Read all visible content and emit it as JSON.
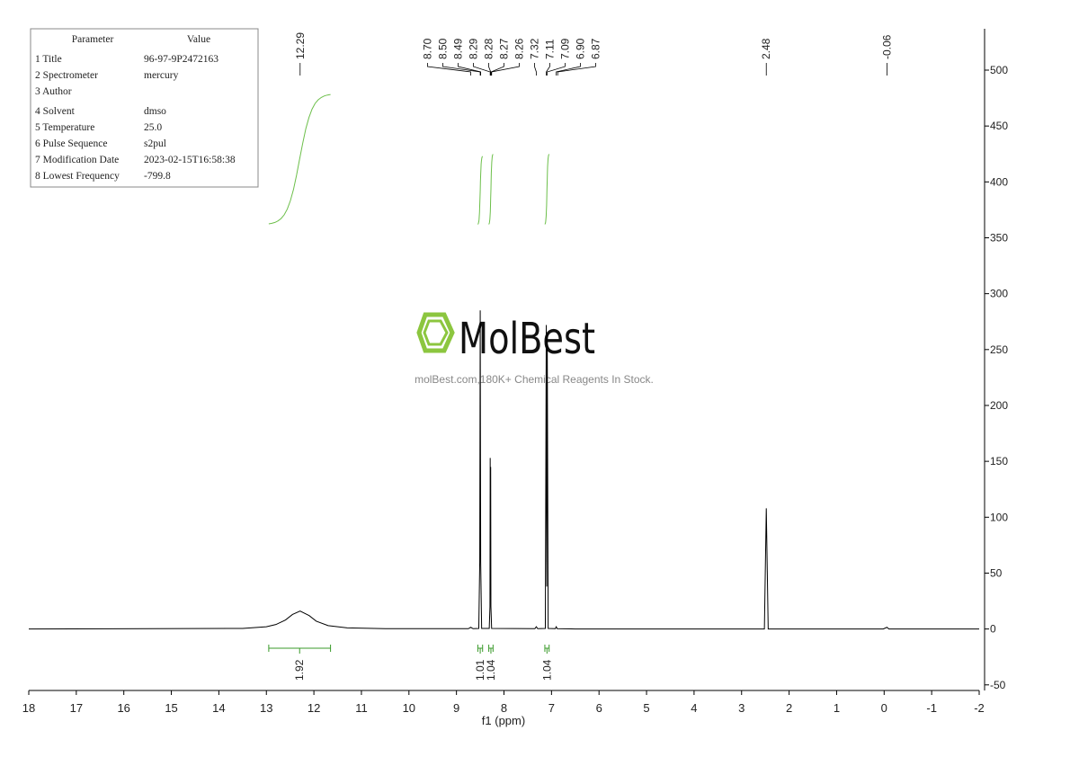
{
  "chart_data": {
    "type": "nmr",
    "x_label": "f1 (ppm)",
    "xlim": [
      18,
      -2
    ],
    "xticks": [
      18,
      17,
      16,
      15,
      14,
      13,
      12,
      11,
      10,
      9,
      8,
      7,
      6,
      5,
      4,
      3,
      2,
      1,
      0,
      -1,
      -2
    ],
    "ylim": [
      -55,
      537
    ],
    "yticks": [
      -50,
      0,
      50,
      100,
      150,
      200,
      250,
      300,
      350,
      400,
      450,
      500
    ],
    "color": "#000000",
    "integral_color": "#3a9a2a",
    "x": [
      18,
      13.5,
      13.0,
      12.8,
      12.6,
      12.45,
      12.29,
      12.1,
      11.95,
      11.7,
      11.3,
      10.5,
      8.75,
      8.7,
      8.65,
      8.53,
      8.51,
      8.5,
      8.49,
      8.47,
      8.31,
      8.295,
      8.29,
      8.285,
      8.28,
      8.275,
      8.26,
      7.35,
      7.32,
      7.29,
      7.13,
      7.11,
      7.1,
      7.09,
      7.07,
      6.92,
      6.9,
      6.88,
      6.5,
      2.52,
      2.48,
      2.44,
      0.02,
      -0.06,
      -0.1,
      -2
    ],
    "values": [
      0,
      0.5,
      2,
      4,
      8,
      13,
      16,
      12,
      7,
      3,
      1,
      0.3,
      0.3,
      1.5,
      0.3,
      0.5,
      60,
      285,
      60,
      0.5,
      0.5,
      20,
      153,
      40,
      145,
      20,
      0.5,
      0.3,
      2,
      0.3,
      0.5,
      272,
      38,
      265,
      0.5,
      0.3,
      2,
      0.3,
      0,
      0,
      108,
      0,
      0,
      1.5,
      0,
      0
    ],
    "peak_labels": [
      {
        "value": 12.29,
        "label": "12.29"
      },
      {
        "value": 8.7,
        "label": "8.70"
      },
      {
        "value": 8.5,
        "label": "8.50"
      },
      {
        "value": 8.49,
        "label": "8.49"
      },
      {
        "value": 8.29,
        "label": "8.29"
      },
      {
        "value": 8.28,
        "label": "8.28"
      },
      {
        "value": 8.27,
        "label": "8.27"
      },
      {
        "value": 8.26,
        "label": "8.26"
      },
      {
        "value": 7.32,
        "label": "7.32"
      },
      {
        "value": 7.11,
        "label": "7.11"
      },
      {
        "value": 7.09,
        "label": "7.09"
      },
      {
        "value": 6.9,
        "label": "6.90"
      },
      {
        "value": 6.87,
        "label": "6.87"
      },
      {
        "value": 2.48,
        "label": "2.48"
      },
      {
        "value": -0.06,
        "label": "-0.06"
      }
    ],
    "integrals": [
      {
        "from": 12.95,
        "to": 11.65,
        "value": 1.92
      },
      {
        "from": 8.55,
        "to": 8.45,
        "value": 1.01
      },
      {
        "from": 8.32,
        "to": 8.23,
        "value": 1.04
      },
      {
        "from": 7.14,
        "to": 7.05,
        "value": 1.04
      }
    ]
  },
  "parameters": {
    "header": [
      "Parameter",
      "Value"
    ],
    "rows": [
      [
        "1 Title",
        "96-97-9P2472163"
      ],
      [
        "2 Spectrometer",
        "mercury"
      ],
      [
        "3 Author"
      ],
      [
        "4 Solvent",
        "dmso"
      ],
      [
        "5 Temperature",
        "25.0"
      ],
      [
        "6 Pulse Sequence",
        "s2pul"
      ],
      [
        "7 Modification Date",
        "2023-02-15T16:58:38"
      ],
      [
        "8 Lowest Frequency",
        "-799.8"
      ]
    ]
  },
  "watermark": {
    "brand": "MolBest",
    "tagline": "molBest.com,180K+ Chemical Reagents In Stock."
  }
}
